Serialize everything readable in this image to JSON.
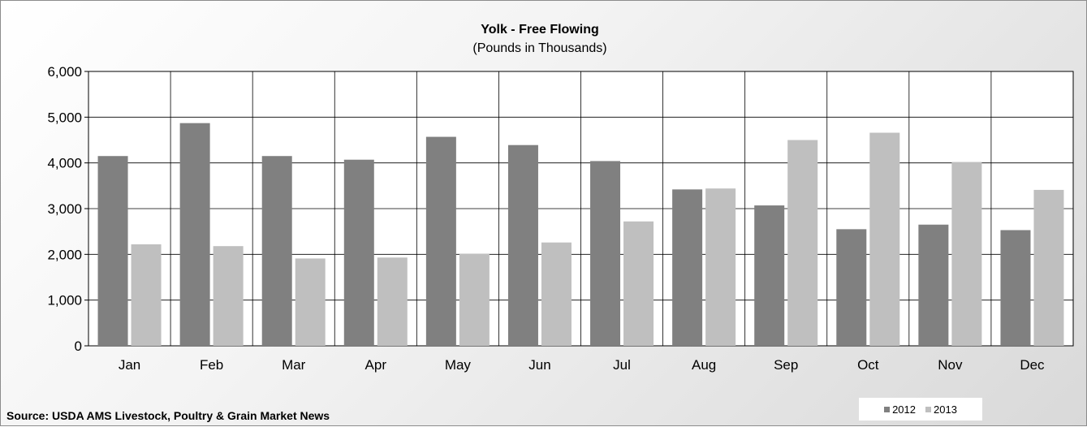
{
  "chart_data": {
    "type": "bar",
    "title": "Yolk - Free Flowing",
    "subtitle": "(Pounds in Thousands)",
    "xlabel": "",
    "ylabel": "",
    "categories": [
      "Jan",
      "Feb",
      "Mar",
      "Apr",
      "May",
      "Jun",
      "Jul",
      "Aug",
      "Sep",
      "Oct",
      "Nov",
      "Dec"
    ],
    "series": [
      {
        "name": "2012",
        "color": "#808080",
        "values": [
          4150,
          4870,
          4150,
          4070,
          4570,
          4390,
          4040,
          3420,
          3070,
          2550,
          2650,
          2530
        ]
      },
      {
        "name": "2013",
        "color": "#bfbfbf",
        "values": [
          2220,
          2180,
          1910,
          1930,
          2010,
          2260,
          2720,
          3440,
          4500,
          4660,
          4020,
          3410
        ]
      }
    ],
    "ylim": [
      0,
      6000
    ],
    "yticks": [
      "0",
      "1,000",
      "2,000",
      "3,000",
      "4,000",
      "5,000",
      "6,000"
    ],
    "grid": true,
    "legend_position": "bottom-right"
  },
  "source": "Source: USDA AMS Livestock, Poultry & Grain Market News"
}
